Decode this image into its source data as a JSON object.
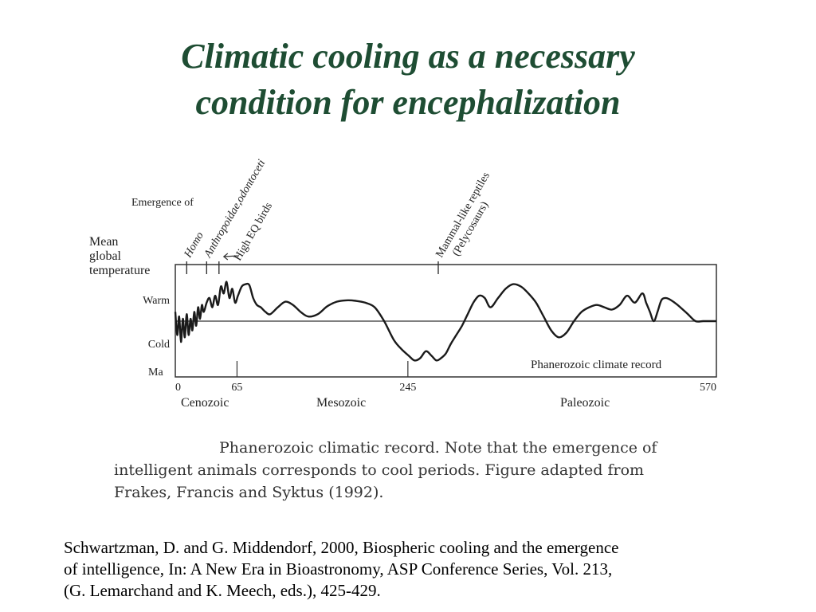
{
  "slide": {
    "title_line1": "Climatic cooling as a necessary",
    "title_line2": "condition for encephalization"
  },
  "chart_data": {
    "type": "line",
    "title": "Phanerozoic climate record",
    "x_label": "Ma",
    "y_label": "Mean global temperature",
    "y_ticks": [
      "Warm",
      "Cold"
    ],
    "x_ticks": [
      "0",
      "65",
      "245",
      "570"
    ],
    "x_range": [
      0,
      570
    ],
    "y_range": [
      -1,
      1
    ],
    "eras": [
      "Cenozoic",
      "Mesozoic",
      "Paleozoic"
    ],
    "emergence_heading": "Emergence of",
    "emergence_markers": [
      {
        "label": "Homo",
        "x": 12
      },
      {
        "label": "Anthropoidae,odontoceti",
        "x": 33
      },
      {
        "label": "High EQ birds",
        "x": 46
      },
      {
        "label": "Mammal-like reptiles (Pelycosaurs)",
        "x": 277
      }
    ],
    "series": [
      {
        "x": [
          0,
          2,
          4,
          6,
          8,
          10,
          12,
          14,
          16,
          18,
          20,
          22,
          24,
          26,
          28,
          30,
          33,
          36,
          39,
          42,
          45,
          48,
          51,
          54,
          57,
          60,
          63,
          66,
          70,
          74,
          78,
          82,
          86,
          90,
          95,
          100,
          108,
          116,
          124,
          132,
          140,
          150,
          160,
          170,
          180,
          190,
          200,
          210,
          220,
          230,
          238,
          246,
          252,
          258,
          264,
          270,
          275,
          280,
          285,
          290,
          296,
          302,
          308,
          314,
          320,
          326,
          332,
          340,
          348,
          356,
          364,
          372,
          380,
          388,
          396,
          404,
          412,
          420,
          428,
          436,
          444,
          452,
          460,
          468,
          476,
          484,
          492,
          496,
          500,
          504,
          508,
          512,
          516,
          520,
          526,
          532,
          540,
          548,
          556,
          564,
          570
        ],
        "y": [
          0.2,
          -0.3,
          0.1,
          -0.45,
          0.05,
          -0.35,
          0.15,
          -0.3,
          0.05,
          -0.2,
          0.2,
          -0.1,
          0.3,
          0.05,
          0.35,
          0.2,
          0.4,
          0.5,
          0.3,
          0.55,
          0.35,
          0.75,
          0.6,
          0.85,
          0.5,
          0.7,
          0.4,
          0.55,
          0.75,
          0.8,
          0.78,
          0.5,
          0.35,
          0.3,
          0.2,
          0.15,
          0.3,
          0.42,
          0.35,
          0.2,
          0.1,
          0.15,
          0.32,
          0.42,
          0.45,
          0.44,
          0.4,
          0.3,
          0.0,
          -0.4,
          -0.6,
          -0.75,
          -0.85,
          -0.8,
          -0.65,
          -0.75,
          -0.85,
          -0.8,
          -0.7,
          -0.5,
          -0.3,
          -0.1,
          0.15,
          0.4,
          0.55,
          0.5,
          0.3,
          0.5,
          0.7,
          0.8,
          0.75,
          0.6,
          0.4,
          0.1,
          -0.2,
          -0.35,
          -0.25,
          0.0,
          0.2,
          0.3,
          0.35,
          0.3,
          0.25,
          0.35,
          0.55,
          0.4,
          0.6,
          0.4,
          0.2,
          0.0,
          0.2,
          0.45,
          0.5,
          0.48,
          0.4,
          0.3,
          0.15,
          0.0,
          0.0,
          0.0,
          0.0
        ]
      }
    ]
  },
  "caption": {
    "line1": "Phanerozoic climatic record.  Note that the emergence of",
    "line2": "intelligent animals corresponds to cool periods.  Figure adapted from",
    "line3": "Frakes, Francis and Syktus (1992)."
  },
  "citation": {
    "line1": "Schwartzman, D. and G. Middendorf, 2000, Biospheric cooling and the emergence",
    "line2": "of intelligence, In: A New Era in Bioastronomy, ASP Conference Series, Vol. 213,",
    "line3": "(G. Lemarchand and K. Meech, eds.), 425-429."
  }
}
